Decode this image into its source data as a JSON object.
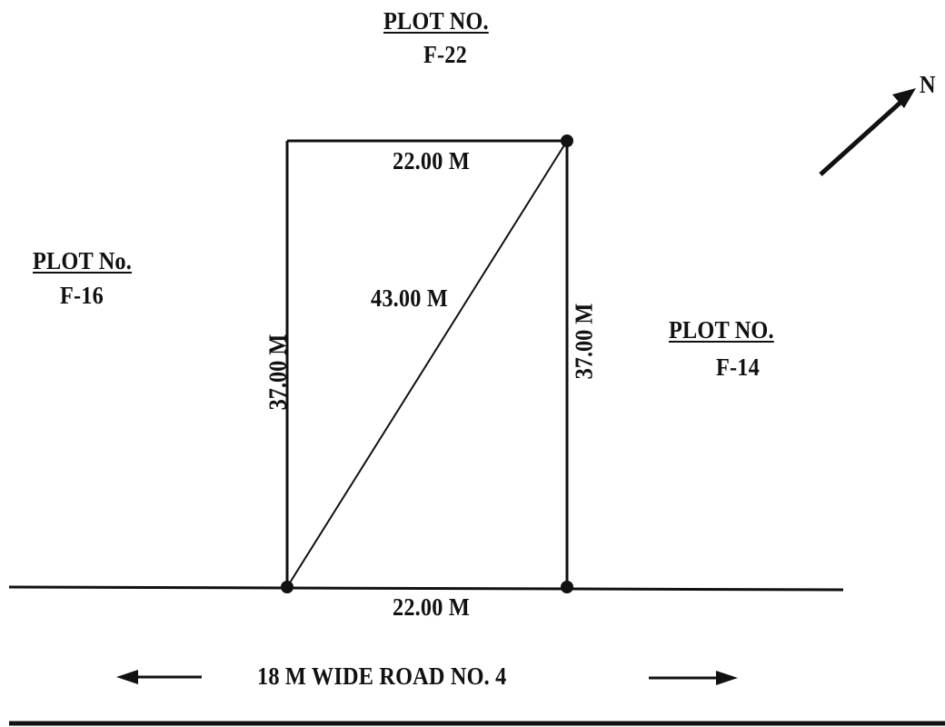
{
  "plots": {
    "north": {
      "title": "PLOT NO.",
      "number": "F-22"
    },
    "west": {
      "title": "PLOT No.",
      "number": "F-16"
    },
    "east": {
      "title": "PLOT NO.",
      "number": "F-14"
    }
  },
  "dimensions": {
    "top": "22.00 M",
    "bottom": "22.00 M",
    "left": "37.00 M",
    "right": "37.00 M",
    "diagonal": "43.00 M"
  },
  "road": {
    "label": "18 M WIDE ROAD NO. 4"
  },
  "north_arrow": {
    "label": "N",
    "icon": "north-arrow-icon"
  },
  "colors": {
    "ink": "#111111",
    "background": "#ffffff"
  }
}
